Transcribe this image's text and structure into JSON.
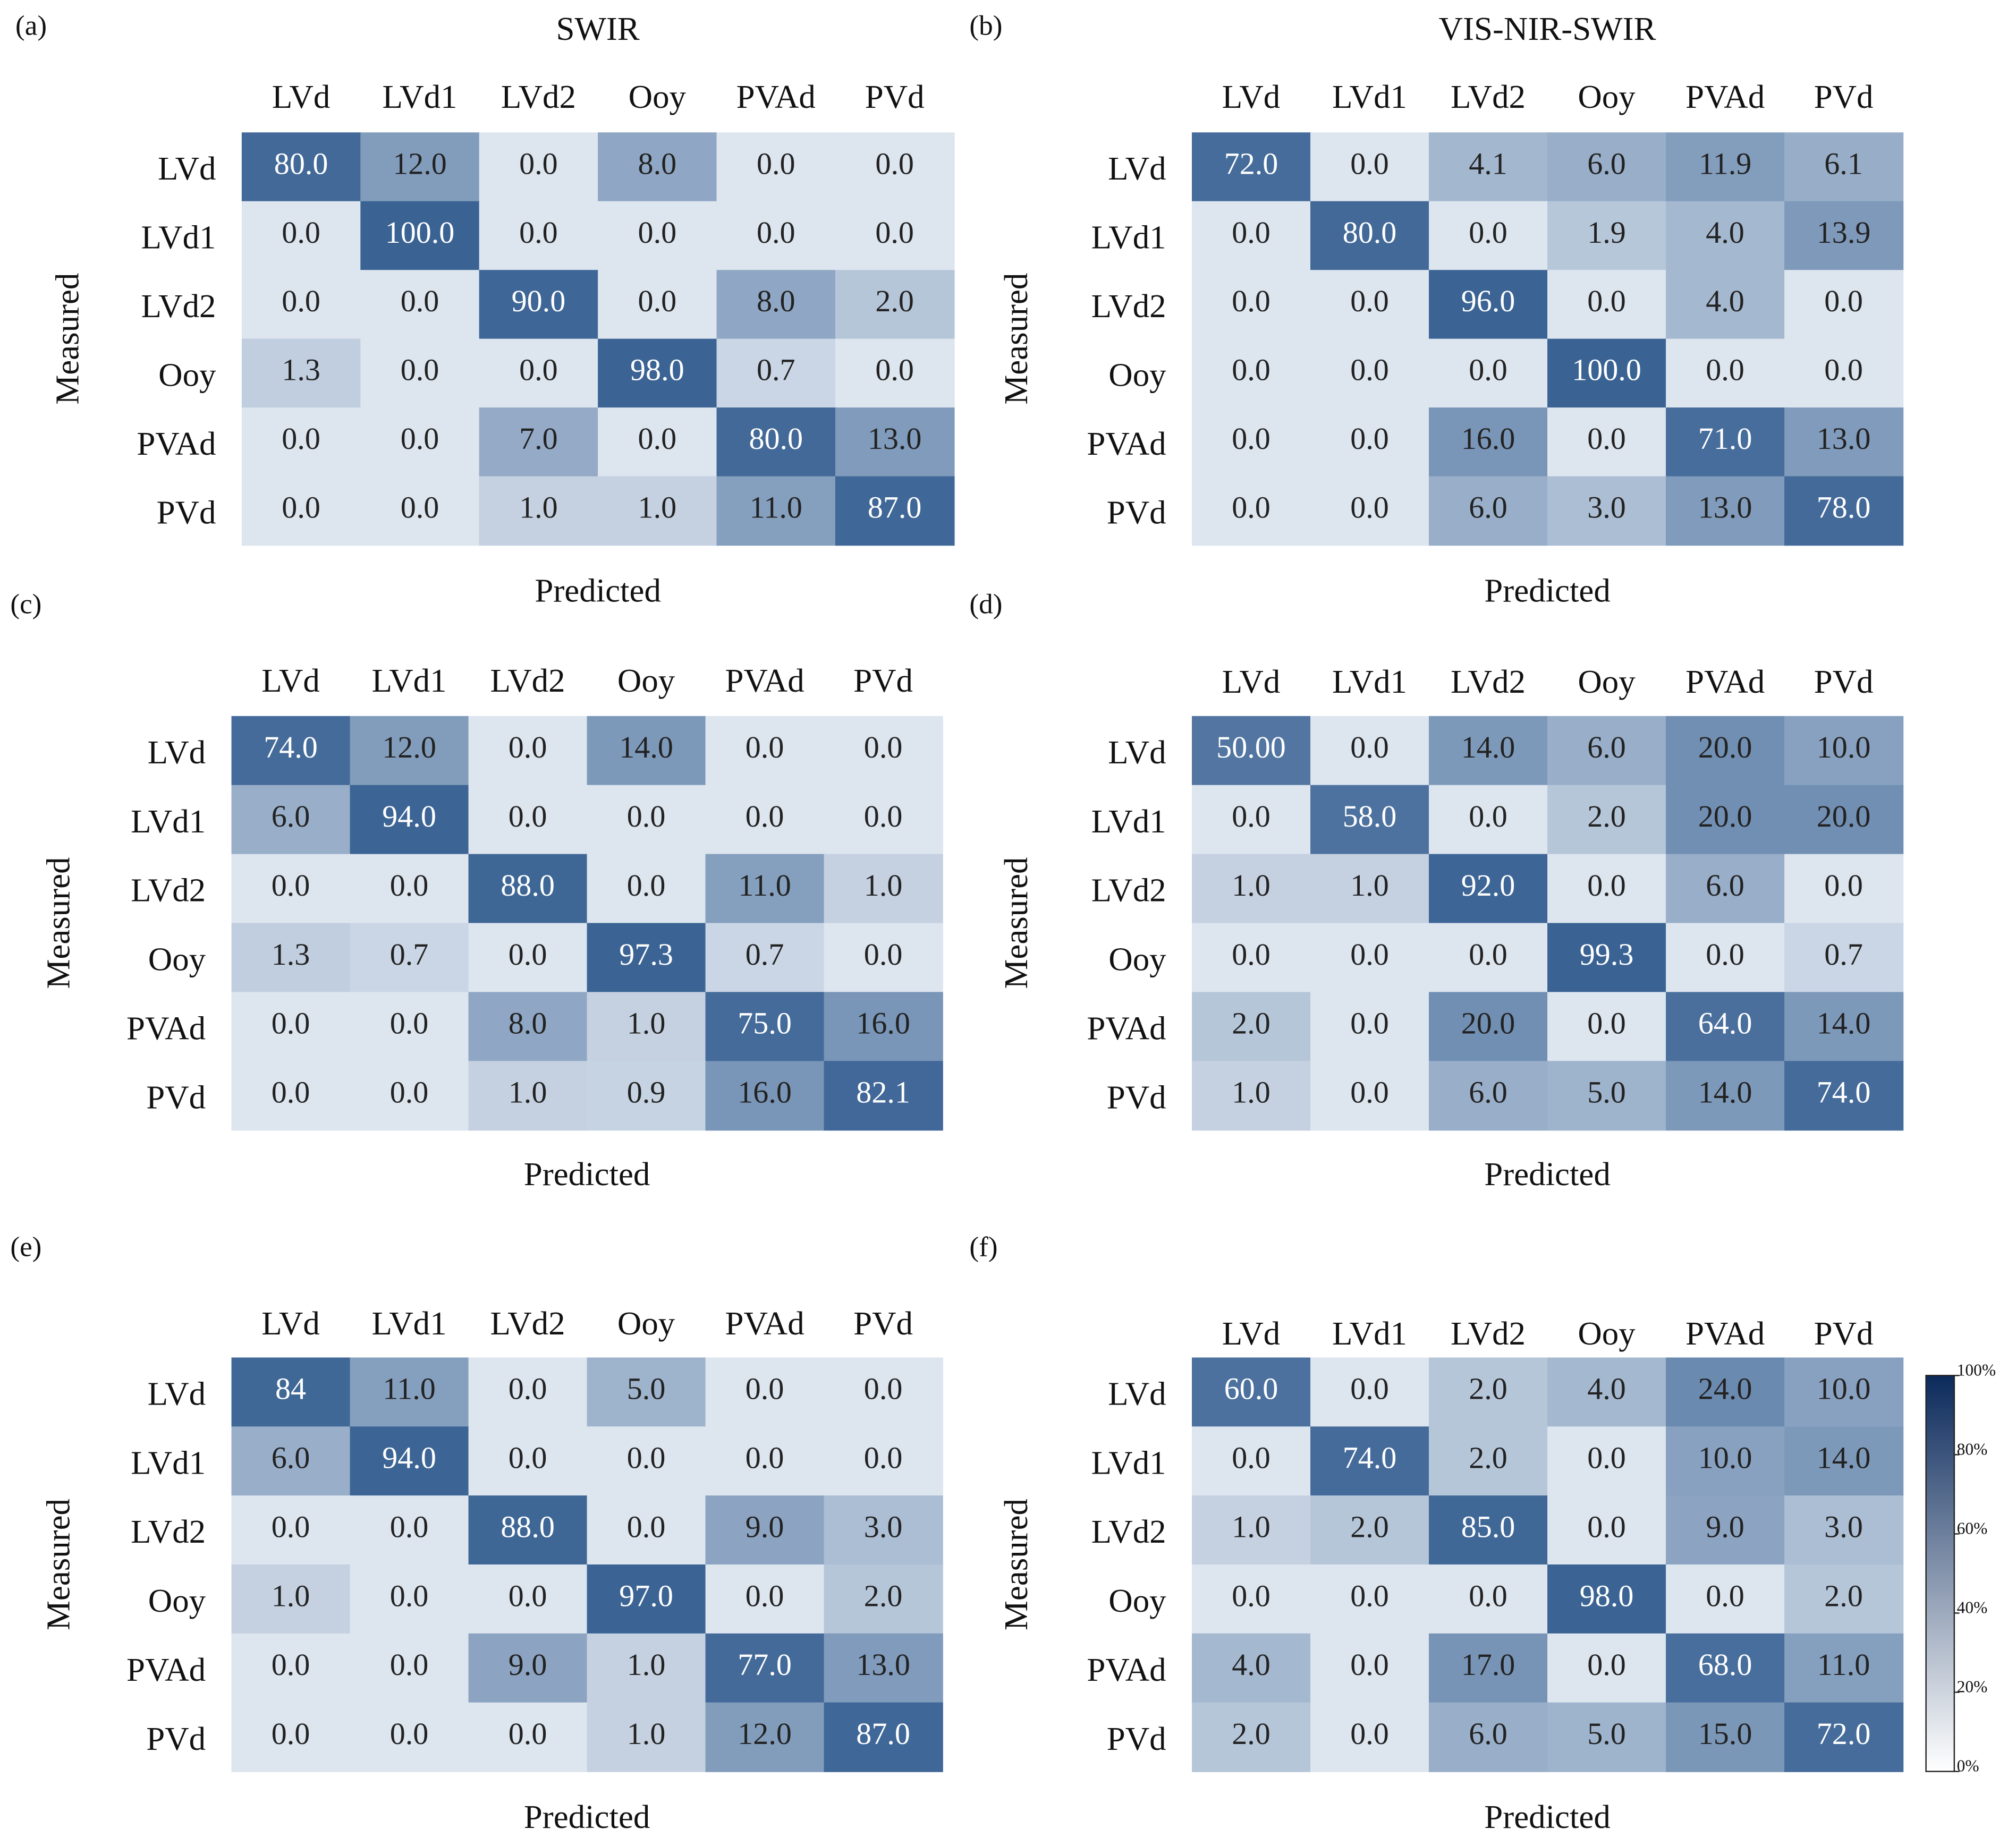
{
  "chart_data": [
    {
      "type": "heatmap",
      "label": "(a)",
      "title": "SWIR",
      "x_label": "Predicted",
      "y_label": "Measured",
      "x_categories": [
        "LVd",
        "LVd1",
        "LVd2",
        "Ooy",
        "PVAd",
        "PVd"
      ],
      "y_categories": [
        "LVd",
        "LVd1",
        "LVd2",
        "Ooy",
        "PVAd",
        "PVd"
      ],
      "values": [
        [
          80,
          12,
          0,
          8,
          0,
          0
        ],
        [
          0,
          100,
          0,
          0,
          0,
          0
        ],
        [
          0,
          0,
          90,
          0,
          8,
          2
        ],
        [
          1.3,
          0,
          0,
          98,
          0.7,
          0
        ],
        [
          0,
          0,
          7,
          0,
          80,
          13
        ],
        [
          0,
          0,
          1,
          1,
          11,
          87
        ]
      ],
      "value_labels": [
        [
          "80.0",
          "12.0",
          "0.0",
          "8.0",
          "0.0",
          "0.0"
        ],
        [
          "0.0",
          "100.0",
          "0.0",
          "0.0",
          "0.0",
          "0.0"
        ],
        [
          "0.0",
          "0.0",
          "90.0",
          "0.0",
          "8.0",
          "2.0"
        ],
        [
          "1.3",
          "0.0",
          "0.0",
          "98.0",
          "0.7",
          "0.0"
        ],
        [
          "0.0",
          "0.0",
          "7.0",
          "0.0",
          "80.0",
          "13.0"
        ],
        [
          "0.0",
          "0.0",
          "1.0",
          "1.0",
          "11.0",
          "87.0"
        ]
      ],
      "colors": [
        "#dde5ef",
        "#3a6394"
      ]
    },
    {
      "type": "heatmap",
      "label": "(b)",
      "title": "VIS-NIR-SWIR",
      "x_label": "Predicted",
      "y_label": "Measured",
      "x_categories": [
        "LVd",
        "LVd1",
        "LVd2",
        "Ooy",
        "PVAd",
        "PVd"
      ],
      "y_categories": [
        "LVd",
        "LVd1",
        "LVd2",
        "Ooy",
        "PVAd",
        "PVd"
      ],
      "values": [
        [
          72,
          0,
          4.1,
          6,
          11.9,
          6.1
        ],
        [
          0,
          80,
          0,
          1.9,
          4,
          13.9
        ],
        [
          0,
          0,
          96,
          0,
          4,
          0
        ],
        [
          0,
          0,
          0,
          100,
          0,
          0
        ],
        [
          0,
          0,
          16,
          0,
          71,
          13
        ],
        [
          0,
          0,
          6,
          3,
          13,
          78
        ]
      ],
      "value_labels": [
        [
          "72.0",
          "0.0",
          "4.1",
          "6.0",
          "11.9",
          "6.1"
        ],
        [
          "0.0",
          "80.0",
          "0.0",
          "1.9",
          "4.0",
          "13.9"
        ],
        [
          "0.0",
          "0.0",
          "96.0",
          "0.0",
          "4.0",
          "0.0"
        ],
        [
          "0.0",
          "0.0",
          "0.0",
          "100.0",
          "0.0",
          "0.0"
        ],
        [
          "0.0",
          "0.0",
          "16.0",
          "0.0",
          "71.0",
          "13.0"
        ],
        [
          "0.0",
          "0.0",
          "6.0",
          "3.0",
          "13.0",
          "78.0"
        ]
      ],
      "colors": [
        "#dde5ef",
        "#3a6394"
      ]
    },
    {
      "type": "heatmap",
      "label": "(c)",
      "x_label": "Predicted",
      "y_label": "Measured",
      "x_categories": [
        "LVd",
        "LVd1",
        "LVd2",
        "Ooy",
        "PVAd",
        "PVd"
      ],
      "y_categories": [
        "LVd",
        "LVd1",
        "LVd2",
        "Ooy",
        "PVAd",
        "PVd"
      ],
      "values": [
        [
          74,
          12,
          0,
          14,
          0,
          0
        ],
        [
          6,
          94,
          0,
          0,
          0,
          0
        ],
        [
          0,
          0,
          88,
          0,
          11,
          1
        ],
        [
          1.3,
          0.7,
          0,
          97.3,
          0.7,
          0
        ],
        [
          0,
          0,
          8,
          1,
          75,
          16
        ],
        [
          0,
          0,
          1,
          0.9,
          16,
          82.1
        ]
      ],
      "value_labels": [
        [
          "74.0",
          "12.0",
          "0.0",
          "14.0",
          "0.0",
          "0.0"
        ],
        [
          "6.0",
          "94.0",
          "0.0",
          "0.0",
          "0.0",
          "0.0"
        ],
        [
          "0.0",
          "0.0",
          "88.0",
          "0.0",
          "11.0",
          "1.0"
        ],
        [
          "1.3",
          "0.7",
          "0.0",
          "97.3",
          "0.7",
          "0.0"
        ],
        [
          "0.0",
          "0.0",
          "8.0",
          "1.0",
          "75.0",
          "16.0"
        ],
        [
          "0.0",
          "0.0",
          "1.0",
          "0.9",
          "16.0",
          "82.1"
        ]
      ],
      "colors": [
        "#dde5ef",
        "#3a6394"
      ]
    },
    {
      "type": "heatmap",
      "label": "(d)",
      "x_label": "Predicted",
      "y_label": "Measured",
      "x_categories": [
        "LVd",
        "LVd1",
        "LVd2",
        "Ooy",
        "PVAd",
        "PVd"
      ],
      "y_categories": [
        "LVd",
        "LVd1",
        "LVd2",
        "Ooy",
        "PVAd",
        "PVd"
      ],
      "values": [
        [
          50,
          0,
          14,
          6,
          20,
          10
        ],
        [
          0,
          58,
          0,
          2,
          20,
          20
        ],
        [
          1,
          1,
          92,
          0,
          6,
          0
        ],
        [
          0,
          0,
          0,
          99.3,
          0,
          0.7
        ],
        [
          2,
          0,
          20,
          0,
          64,
          14
        ],
        [
          1,
          0,
          6,
          5,
          14,
          74
        ]
      ],
      "value_labels": [
        [
          "50.00",
          "0.0",
          "14.0",
          "6.0",
          "20.0",
          "10.0"
        ],
        [
          "0.0",
          "58.0",
          "0.0",
          "2.0",
          "20.0",
          "20.0"
        ],
        [
          "1.0",
          "1.0",
          "92.0",
          "0.0",
          "6.0",
          "0.0"
        ],
        [
          "0.0",
          "0.0",
          "0.0",
          "99.3",
          "0.0",
          "0.7"
        ],
        [
          "2.0",
          "0.0",
          "20.0",
          "0.0",
          "64.0",
          "14.0"
        ],
        [
          "1.0",
          "0.0",
          "6.0",
          "5.0",
          "14.0",
          "74.0"
        ]
      ],
      "colors": [
        "#dde5ef",
        "#3a6394"
      ]
    },
    {
      "type": "heatmap",
      "label": "(e)",
      "x_label": "Predicted",
      "y_label": "Measured",
      "x_categories": [
        "LVd",
        "LVd1",
        "LVd2",
        "Ooy",
        "PVAd",
        "PVd"
      ],
      "y_categories": [
        "LVd",
        "LVd1",
        "LVd2",
        "Ooy",
        "PVAd",
        "PVd"
      ],
      "values": [
        [
          84,
          11,
          0,
          5,
          0,
          0
        ],
        [
          6,
          94,
          0,
          0,
          0,
          0
        ],
        [
          0,
          0,
          88,
          0,
          9,
          3
        ],
        [
          1,
          0,
          0,
          97,
          0,
          2
        ],
        [
          0,
          0,
          9,
          1,
          77,
          13
        ],
        [
          0,
          0,
          0,
          1,
          12,
          87
        ]
      ],
      "value_labels": [
        [
          "84",
          "11.0",
          "0.0",
          "5.0",
          "0.0",
          "0.0"
        ],
        [
          "6.0",
          "94.0",
          "0.0",
          "0.0",
          "0.0",
          "0.0"
        ],
        [
          "0.0",
          "0.0",
          "88.0",
          "0.0",
          "9.0",
          "3.0"
        ],
        [
          "1.0",
          "0.0",
          "0.0",
          "97.0",
          "0.0",
          "2.0"
        ],
        [
          "0.0",
          "0.0",
          "9.0",
          "1.0",
          "77.0",
          "13.0"
        ],
        [
          "0.0",
          "0.0",
          "0.0",
          "1.0",
          "12.0",
          "87.0"
        ]
      ],
      "colors": [
        "#dde5ef",
        "#3a6394"
      ]
    },
    {
      "type": "heatmap",
      "label": "(f)",
      "x_label": "Predicted",
      "y_label": "Measured",
      "x_categories": [
        "LVd",
        "LVd1",
        "LVd2",
        "Ooy",
        "PVAd",
        "PVd"
      ],
      "y_categories": [
        "LVd",
        "LVd1",
        "LVd2",
        "Ooy",
        "PVAd",
        "PVd"
      ],
      "values": [
        [
          60,
          0,
          2,
          4,
          24,
          10
        ],
        [
          0,
          74,
          2,
          0,
          10,
          14
        ],
        [
          1,
          2,
          85,
          0,
          9,
          3
        ],
        [
          0,
          0,
          0,
          98,
          0,
          2
        ],
        [
          4,
          0,
          17,
          0,
          68,
          11
        ],
        [
          2,
          0,
          6,
          5,
          15,
          72
        ]
      ],
      "value_labels": [
        [
          "60.0",
          "0.0",
          "2.0",
          "4.0",
          "24.0",
          "10.0"
        ],
        [
          "0.0",
          "74.0",
          "2.0",
          "0.0",
          "10.0",
          "14.0"
        ],
        [
          "1.0",
          "2.0",
          "85.0",
          "0.0",
          "9.0",
          "3.0"
        ],
        [
          "0.0",
          "0.0",
          "0.0",
          "98.0",
          "0.0",
          "2.0"
        ],
        [
          "4.0",
          "0.0",
          "17.0",
          "0.0",
          "68.0",
          "11.0"
        ],
        [
          "2.0",
          "0.0",
          "6.0",
          "5.0",
          "15.0",
          "72.0"
        ]
      ],
      "colors": [
        "#dde5ef",
        "#3a6394"
      ],
      "colorbar": {
        "lim": [
          0,
          100
        ],
        "colors": [
          "#ffffff",
          "#0b2a5b"
        ],
        "ticks": [
          {
            "value": 0,
            "label": "0%"
          },
          {
            "value": 20,
            "label": "20%"
          },
          {
            "value": 40,
            "label": "40%"
          },
          {
            "value": 60,
            "label": "60%"
          },
          {
            "value": 80,
            "label": "80%"
          },
          {
            "value": 100,
            "label": "100%"
          }
        ]
      }
    }
  ]
}
